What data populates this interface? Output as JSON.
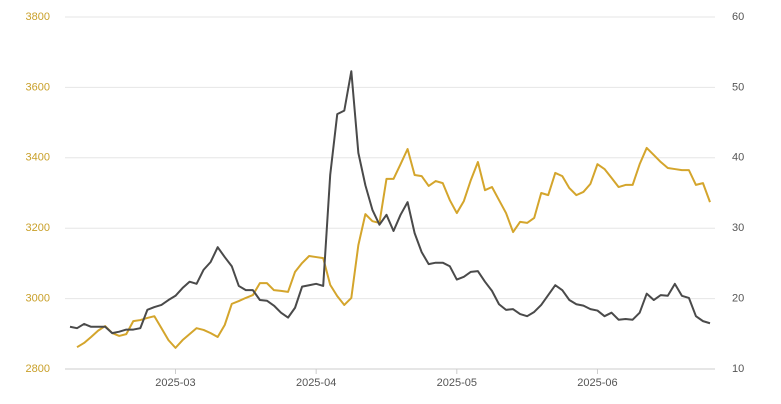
{
  "chart_data": {
    "type": "line",
    "categories": [
      null,
      null,
      null,
      null,
      null,
      null,
      null,
      null,
      null,
      null,
      null,
      null,
      null,
      null,
      null,
      "2025-03",
      null,
      null,
      null,
      null,
      null,
      null,
      null,
      null,
      null,
      null,
      null,
      null,
      null,
      null,
      null,
      null,
      null,
      null,
      null,
      "2025-04",
      null,
      null,
      null,
      null,
      null,
      null,
      null,
      null,
      null,
      null,
      null,
      null,
      null,
      null,
      null,
      null,
      null,
      null,
      null,
      "2025-05",
      null,
      null,
      null,
      null,
      null,
      null,
      null,
      null,
      null,
      null,
      null,
      null,
      null,
      null,
      null,
      null,
      null,
      null,
      null,
      "2025-06",
      null,
      null,
      null,
      null,
      null,
      null,
      null,
      null,
      null,
      null,
      null,
      null,
      null,
      null,
      null,
      null
    ],
    "series": [
      {
        "color": "#d4a52c",
        "axis": "y",
        "values": [
          null,
          2862,
          2874,
          2891,
          2909,
          2922,
          2902,
          2894,
          2899,
          2936,
          2939,
          2945,
          2950,
          2916,
          2882,
          2860,
          2882,
          2899,
          2916,
          2911,
          2902,
          2891,
          2925,
          2985,
          2993,
          3002,
          3010,
          3044,
          3044,
          3024,
          3022,
          3019,
          3076,
          3101,
          3121,
          3118,
          3115,
          3039,
          3007,
          2982,
          3002,
          3152,
          3240,
          3220,
          3215,
          3340,
          3340,
          3382,
          3425,
          3351,
          3348,
          3320,
          3334,
          3328,
          3280,
          3243,
          3277,
          3337,
          3388,
          3308,
          3317,
          3280,
          3243,
          3189,
          3218,
          3215,
          3229,
          3300,
          3294,
          3357,
          3348,
          3314,
          3294,
          3303,
          3326,
          3382,
          3368,
          3343,
          3317,
          3323,
          3323,
          3382,
          3428,
          3408,
          3388,
          3371,
          3368,
          3365,
          3365,
          3323,
          3328,
          3274
        ]
      },
      {
        "color": "#4a4a4a",
        "axis": "y2",
        "values": [
          16.0,
          15.8,
          16.4,
          16.0,
          16.0,
          16.0,
          15.1,
          15.3,
          15.6,
          15.6,
          15.8,
          18.4,
          18.8,
          19.1,
          19.8,
          20.4,
          21.5,
          22.4,
          22.1,
          24.1,
          25.2,
          27.3,
          25.9,
          24.6,
          21.8,
          21.2,
          21.2,
          19.8,
          19.7,
          19.0,
          18.0,
          17.3,
          18.7,
          21.7,
          21.9,
          22.1,
          21.8,
          37.6,
          46.2,
          46.7,
          52.3,
          40.7,
          36.1,
          32.6,
          30.5,
          31.9,
          29.6,
          31.9,
          33.7,
          29.3,
          26.6,
          24.9,
          25.1,
          25.1,
          24.6,
          22.7,
          23.1,
          23.8,
          23.9,
          22.4,
          21.1,
          19.2,
          18.4,
          18.5,
          17.8,
          17.5,
          18.1,
          19.1,
          20.5,
          21.9,
          21.2,
          19.8,
          19.2,
          19.0,
          18.5,
          18.3,
          17.5,
          18.0,
          17.0,
          17.1,
          17.0,
          18.0,
          20.7,
          19.8,
          20.5,
          20.4,
          22.1,
          20.4,
          20.1,
          17.5,
          16.8,
          16.5
        ]
      }
    ],
    "ylim": [
      2800,
      3800
    ],
    "yticks": [
      2800,
      3000,
      3200,
      3400,
      3600,
      3800
    ],
    "y2lim": [
      10,
      60
    ],
    "y2ticks": [
      10,
      20,
      30,
      40,
      50,
      60
    ],
    "ytick_color": "#c9a02a",
    "y2tick_color": "#555555",
    "grid": true
  }
}
